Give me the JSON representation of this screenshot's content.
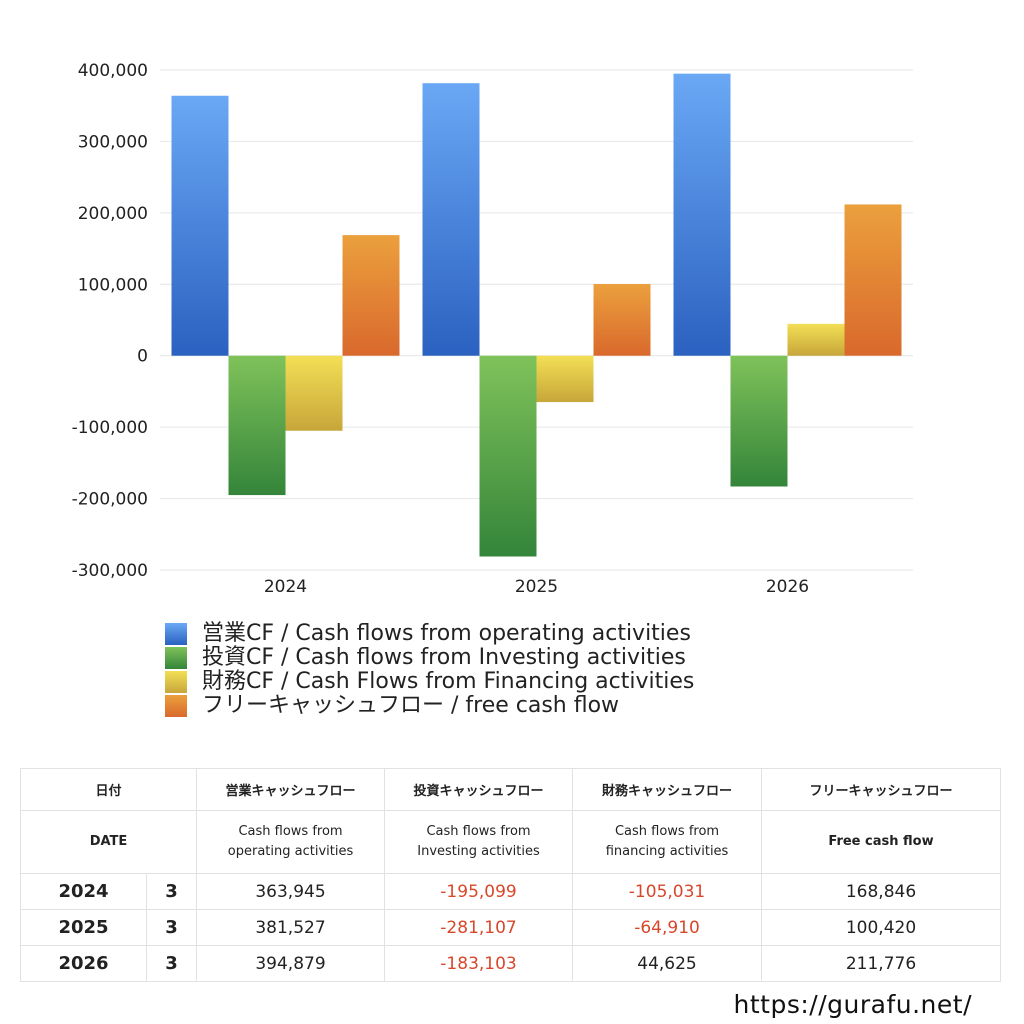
{
  "chart_data": {
    "type": "bar",
    "categories": [
      "2024",
      "2025",
      "2026"
    ],
    "series": [
      {
        "name": "営業CF / Cash flows from operating activities",
        "values": [
          363945,
          381527,
          394879
        ],
        "color_top": "#6aa8f5",
        "color_bottom": "#2b61c0"
      },
      {
        "name": "投資CF / Cash flows from Investing activities",
        "values": [
          -195099,
          -281107,
          -183103
        ],
        "color_top": "#7fc25a",
        "color_bottom": "#34853a"
      },
      {
        "name": "財務CF / Cash Flows from Financing activities",
        "values": [
          -105031,
          -64910,
          44625
        ],
        "color_top": "#f3df55",
        "color_bottom": "#c7a63a"
      },
      {
        "name": "フリーキャッシュフロー / free cash flow",
        "values": [
          168846,
          100420,
          211776
        ],
        "color_top": "#eba03d",
        "color_bottom": "#d9692c"
      }
    ],
    "ylim": [
      -300000,
      400000
    ],
    "yticks": [
      400000,
      300000,
      200000,
      100000,
      0,
      -100000,
      -200000,
      -300000
    ],
    "ytick_labels": [
      "400,000",
      "300,000",
      "200,000",
      "100,000",
      "0",
      "-100,000",
      "-200,000",
      "-300,000"
    ],
    "grid": true,
    "legend_position": "bottom"
  },
  "table": {
    "header_jp": [
      "日付",
      "",
      "営業キャッシュフロー",
      "投資キャッシュフロー",
      "財務キャッシュフロー",
      "フリーキャッシュフロー"
    ],
    "header_en": [
      {
        "line1": "DATE",
        "line2": ""
      },
      {
        "line1": "",
        "line2": ""
      },
      {
        "line1": "Cash flows from",
        "line2": "operating activities"
      },
      {
        "line1": "Cash flows from",
        "line2": "Investing activities"
      },
      {
        "line1": "Cash flows from",
        "line2": "financing activities"
      },
      {
        "line1": "Free cash flow",
        "line2": ""
      }
    ],
    "rows": [
      {
        "year": "2024",
        "month": "3",
        "operating": "363,945",
        "investing": "-195,099",
        "financing": "-105,031",
        "free": "168,846"
      },
      {
        "year": "2025",
        "month": "3",
        "operating": "381,527",
        "investing": "-281,107",
        "financing": "-64,910",
        "free": "100,420"
      },
      {
        "year": "2026",
        "month": "3",
        "operating": "394,879",
        "investing": "-183,103",
        "financing": "44,625",
        "free": "211,776"
      }
    ],
    "negative_color": "#d9472b"
  },
  "footer": {
    "url": "https://gurafu.net/"
  }
}
